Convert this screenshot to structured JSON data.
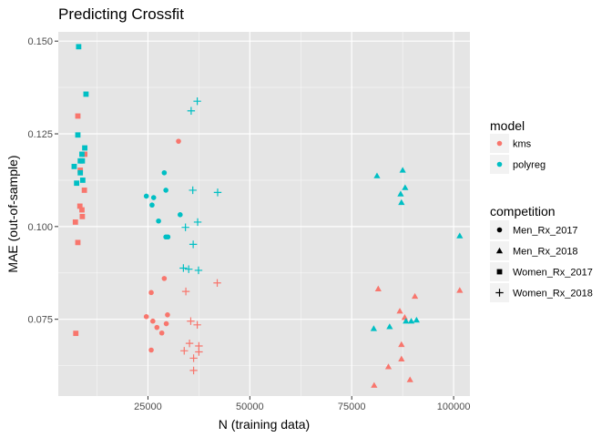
{
  "chart_data": {
    "type": "scatter",
    "title": "Predicting Crossfit",
    "xlabel": "N (training data)",
    "ylabel": "MAE (out-of-sample)",
    "xlim": [
      3000,
      104000
    ],
    "ylim": [
      0.0543,
      0.1525
    ],
    "xticks": [
      25000,
      50000,
      75000,
      100000
    ],
    "xtick_labels": [
      "25000",
      "50000",
      "75000",
      "100000"
    ],
    "yticks": [
      0.075,
      0.1,
      0.125,
      0.15
    ],
    "ytick_labels": [
      "0.075",
      "0.100",
      "0.125",
      "0.150"
    ],
    "grid": true,
    "legend_placement": "right",
    "colors": {
      "kms": "#f8766d",
      "polyreg": "#00bfc4",
      "panel": "#e5e5e5",
      "grid_major": "#ffffff",
      "legend_key": "#f2f2f2",
      "neutral_shape": "#000000"
    },
    "legends": {
      "model": {
        "title": "model",
        "items": [
          {
            "label": "kms",
            "color_key": "kms"
          },
          {
            "label": "polyreg",
            "color_key": "polyreg"
          }
        ]
      },
      "competition": {
        "title": "competition",
        "items": [
          {
            "label": "Men_Rx_2017",
            "shape": "circle"
          },
          {
            "label": "Men_Rx_2018",
            "shape": "triangle"
          },
          {
            "label": "Women_Rx_2017",
            "shape": "square"
          },
          {
            "label": "Women_Rx_2018",
            "shape": "plus"
          }
        ]
      }
    },
    "series": [
      {
        "model": "kms",
        "competition": "Men_Rx_2017",
        "points": [
          [
            32500,
            0.123
          ],
          [
            29000,
            0.086
          ],
          [
            25800,
            0.0822
          ],
          [
            24600,
            0.0757
          ],
          [
            26200,
            0.0745
          ],
          [
            29800,
            0.0762
          ],
          [
            27200,
            0.0728
          ],
          [
            29500,
            0.0738
          ],
          [
            28400,
            0.0713
          ],
          [
            25800,
            0.0667
          ]
        ]
      },
      {
        "model": "polyreg",
        "model_note": "",
        "competition": "Men_Rx_2017",
        "points": [
          [
            29000,
            0.1145
          ],
          [
            32900,
            0.1032
          ],
          [
            29400,
            0.1098
          ],
          [
            24600,
            0.1082
          ],
          [
            26400,
            0.1078
          ],
          [
            26000,
            0.1058
          ],
          [
            27600,
            0.1015
          ],
          [
            29400,
            0.0972
          ],
          [
            29900,
            0.0972
          ]
        ]
      },
      {
        "model": "kms",
        "competition": "Men_Rx_2018",
        "points": [
          [
            101500,
            0.0828
          ],
          [
            81500,
            0.0832
          ],
          [
            90500,
            0.0812
          ],
          [
            86800,
            0.0772
          ],
          [
            88000,
            0.0755
          ],
          [
            87200,
            0.0682
          ],
          [
            87200,
            0.0643
          ],
          [
            84000,
            0.0622
          ],
          [
            89300,
            0.0587
          ],
          [
            80500,
            0.0572
          ]
        ]
      },
      {
        "model": "polyreg",
        "competition": "Men_Rx_2018",
        "points": [
          [
            81200,
            0.1137
          ],
          [
            87500,
            0.1152
          ],
          [
            88100,
            0.1105
          ],
          [
            87000,
            0.1088
          ],
          [
            87200,
            0.1065
          ],
          [
            101500,
            0.0975
          ],
          [
            80400,
            0.0725
          ],
          [
            84300,
            0.073
          ],
          [
            88300,
            0.0745
          ],
          [
            89600,
            0.0745
          ],
          [
            90900,
            0.0748
          ]
        ]
      },
      {
        "model": "kms",
        "competition": "Women_Rx_2017",
        "points": [
          [
            7800,
            0.1298
          ],
          [
            9500,
            0.1195
          ],
          [
            8400,
            0.1152
          ],
          [
            9400,
            0.1098
          ],
          [
            8300,
            0.1055
          ],
          [
            8800,
            0.1045
          ],
          [
            8900,
            0.1027
          ],
          [
            7200,
            0.1012
          ],
          [
            7800,
            0.0957
          ],
          [
            7300,
            0.0712
          ]
        ]
      },
      {
        "model": "polyreg",
        "competition": "Women_Rx_2017",
        "points": [
          [
            8000,
            0.1485
          ],
          [
            9800,
            0.1357
          ],
          [
            7800,
            0.1247
          ],
          [
            9500,
            0.1212
          ],
          [
            8800,
            0.1195
          ],
          [
            8400,
            0.1177
          ],
          [
            8900,
            0.1177
          ],
          [
            6900,
            0.1162
          ],
          [
            8400,
            0.1145
          ],
          [
            9000,
            0.1125
          ],
          [
            7500,
            0.1117
          ]
        ]
      },
      {
        "model": "polyreg",
        "competition": "Women_Rx_2018",
        "points": [
          [
            37100,
            0.1338
          ],
          [
            35600,
            0.1312
          ],
          [
            36000,
            0.1098
          ],
          [
            42100,
            0.1092
          ],
          [
            37200,
            0.1012
          ],
          [
            34200,
            0.0998
          ],
          [
            36100,
            0.0952
          ],
          [
            33700,
            0.0888
          ],
          [
            35000,
            0.0885
          ],
          [
            37400,
            0.0882
          ]
        ]
      },
      {
        "model": "kms",
        "competition": "Women_Rx_2018",
        "points": [
          [
            42000,
            0.0848
          ],
          [
            34300,
            0.0825
          ],
          [
            35500,
            0.0745
          ],
          [
            37100,
            0.0735
          ],
          [
            37500,
            0.0678
          ],
          [
            35200,
            0.0685
          ],
          [
            37500,
            0.0662
          ],
          [
            33900,
            0.0665
          ],
          [
            36200,
            0.0645
          ],
          [
            36200,
            0.0612
          ]
        ]
      }
    ]
  }
}
